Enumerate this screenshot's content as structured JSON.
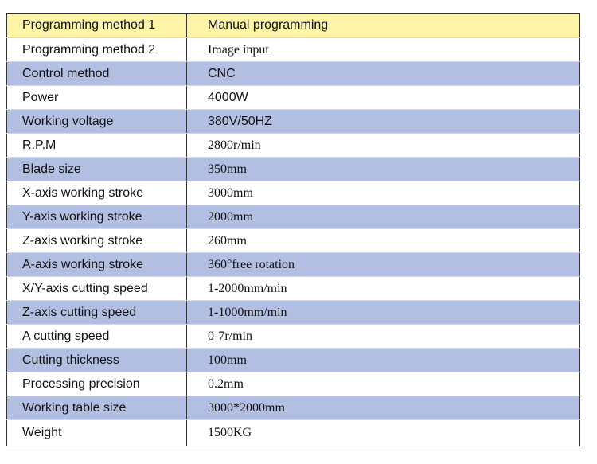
{
  "colors": {
    "header_fill": "#fdf4a7",
    "band_fill": "#b3bfe2",
    "plain_fill": "#ffffff",
    "border": "#333333"
  },
  "specs": [
    {
      "label": "Programming method 1",
      "value": "Manual programming"
    },
    {
      "label": "Programming method 2",
      "value": "Image input"
    },
    {
      "label": "Control method",
      "value": "CNC"
    },
    {
      "label": "Power",
      "value": "4000W"
    },
    {
      "label": "Working voltage",
      "value": "380V/50HZ"
    },
    {
      "label": "R.P.M",
      "value": "2800r/min"
    },
    {
      "label": "Blade size",
      "value": "350mm"
    },
    {
      "label": "X-axis working stroke",
      "value": "3000mm"
    },
    {
      "label": "Y-axis working stroke",
      "value": "2000mm"
    },
    {
      "label": "Z-axis working stroke",
      "value": "260mm"
    },
    {
      "label": "A-axis working stroke",
      "value": "360°free rotation"
    },
    {
      "label": "X/Y-axis cutting speed",
      "value": "1-2000mm/min"
    },
    {
      "label": "Z-axis cutting speed",
      "value": "1-1000mm/min"
    },
    {
      "label": "A cutting speed",
      "value": "0-7r/min"
    },
    {
      "label": "Cutting thickness",
      "value": "100mm"
    },
    {
      "label": "Processing precision",
      "value": "0.2mm"
    },
    {
      "label": "Working table size",
      "value": "3000*2000mm"
    },
    {
      "label": "Weight",
      "value": "1500KG"
    }
  ]
}
